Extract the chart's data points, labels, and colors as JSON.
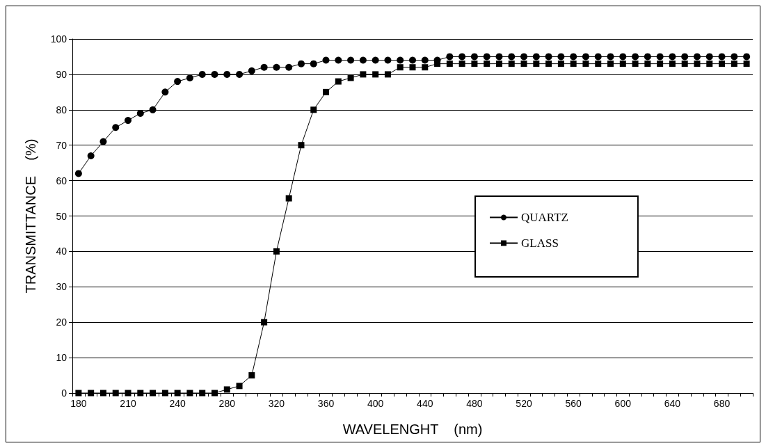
{
  "chart_data": {
    "type": "line",
    "xlabel": "WAVELENGHT    (nm)",
    "ylabel": "TRANSMITTANCE    (%)",
    "categories": [
      "180",
      null,
      null,
      null,
      "210",
      null,
      null,
      null,
      "240",
      null,
      null,
      null,
      "280",
      null,
      null,
      null,
      "320",
      null,
      null,
      null,
      "360",
      null,
      null,
      null,
      "400",
      null,
      null,
      null,
      "440",
      null,
      null,
      null,
      "480",
      null,
      null,
      null,
      "520",
      null,
      null,
      null,
      "560",
      null,
      null,
      null,
      "600",
      null,
      null,
      null,
      "640",
      null,
      null,
      null,
      "680",
      null,
      null
    ],
    "series": [
      {
        "name": "QUARTZ",
        "color": "#000000",
        "marker": "circle",
        "values": [
          62,
          67,
          71,
          75,
          77,
          79,
          80,
          85,
          88,
          89,
          90,
          90,
          90,
          90,
          91,
          92,
          92,
          92,
          93,
          93,
          94,
          94,
          94,
          94,
          94,
          94,
          94,
          94,
          94,
          94,
          95,
          95,
          95,
          95,
          95,
          95,
          95,
          95,
          95,
          95,
          95,
          95,
          95,
          95,
          95,
          95,
          95,
          95,
          95,
          95,
          95,
          95,
          95,
          95,
          95
        ]
      },
      {
        "name": "GLASS",
        "color": "#000000",
        "marker": "square",
        "values": [
          0,
          0,
          0,
          0,
          0,
          0,
          0,
          0,
          0,
          0,
          0,
          0,
          1,
          2,
          5,
          20,
          40,
          55,
          70,
          80,
          85,
          88,
          89,
          90,
          90,
          90,
          92,
          92,
          92,
          93,
          93,
          93,
          93,
          93,
          93,
          93,
          93,
          93,
          93,
          93,
          93,
          93,
          93,
          93,
          93,
          93,
          93,
          93,
          93,
          93,
          93,
          93,
          93,
          93,
          93
        ]
      }
    ],
    "ylim": [
      0,
      100
    ],
    "yticks": [
      0,
      10,
      20,
      30,
      40,
      50,
      60,
      70,
      80,
      90,
      100
    ],
    "grid": "y",
    "legend": "right",
    "line_style": "solid"
  }
}
